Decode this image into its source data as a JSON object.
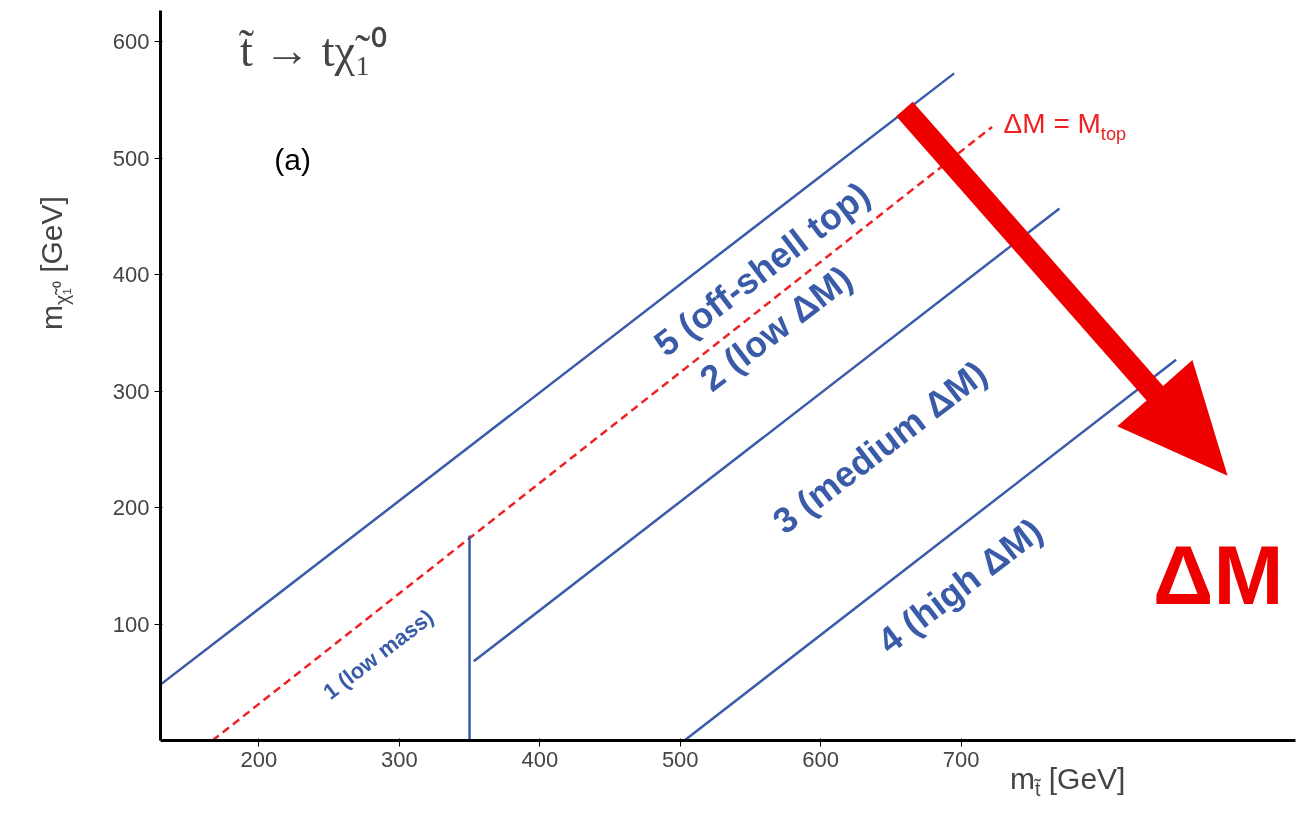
{
  "chart_data": {
    "type": "line",
    "title": "t̃ → tχ̃₁⁰",
    "xlabel": "m$_{t̃}$  [GeV]",
    "ylabel": "m$_{χ̃₁⁰}$  [GeV]",
    "xlim": [
      130,
      938
    ],
    "ylim": [
      0,
      627
    ],
    "xticks": [
      200,
      300,
      400,
      500,
      600,
      700
    ],
    "yticks": [
      100,
      200,
      300,
      400,
      500,
      600
    ],
    "grid": false,
    "marker": "none",
    "line_style": "solid",
    "series": [
      {
        "color": "#3a5ba8",
        "x": [
          130,
          695
        ],
        "values": [
          48,
          573
        ]
      },
      {
        "name": "ΔM = M$_{top}$",
        "color": "#ee2222",
        "line_style": "dashed",
        "x": [
          167,
          722
        ],
        "values": [
          0,
          527
        ]
      },
      {
        "color": "#3a5ba8",
        "x": [
          353,
          770
        ],
        "values": [
          68,
          457
        ]
      },
      {
        "color": "#3a5ba8",
        "x": [
          350,
          350
        ],
        "values": [
          0,
          176
        ]
      },
      {
        "color": "#3a5ba8",
        "x": [
          503,
          853
        ],
        "values": [
          0,
          327
        ]
      }
    ],
    "annotations": [
      "(a)",
      "5 (off-shell top)",
      "2 (low ΔM)",
      "3 (medium ΔM)",
      "4 (high ΔM)",
      "1 (low mass)",
      "ΔM"
    ]
  }
}
